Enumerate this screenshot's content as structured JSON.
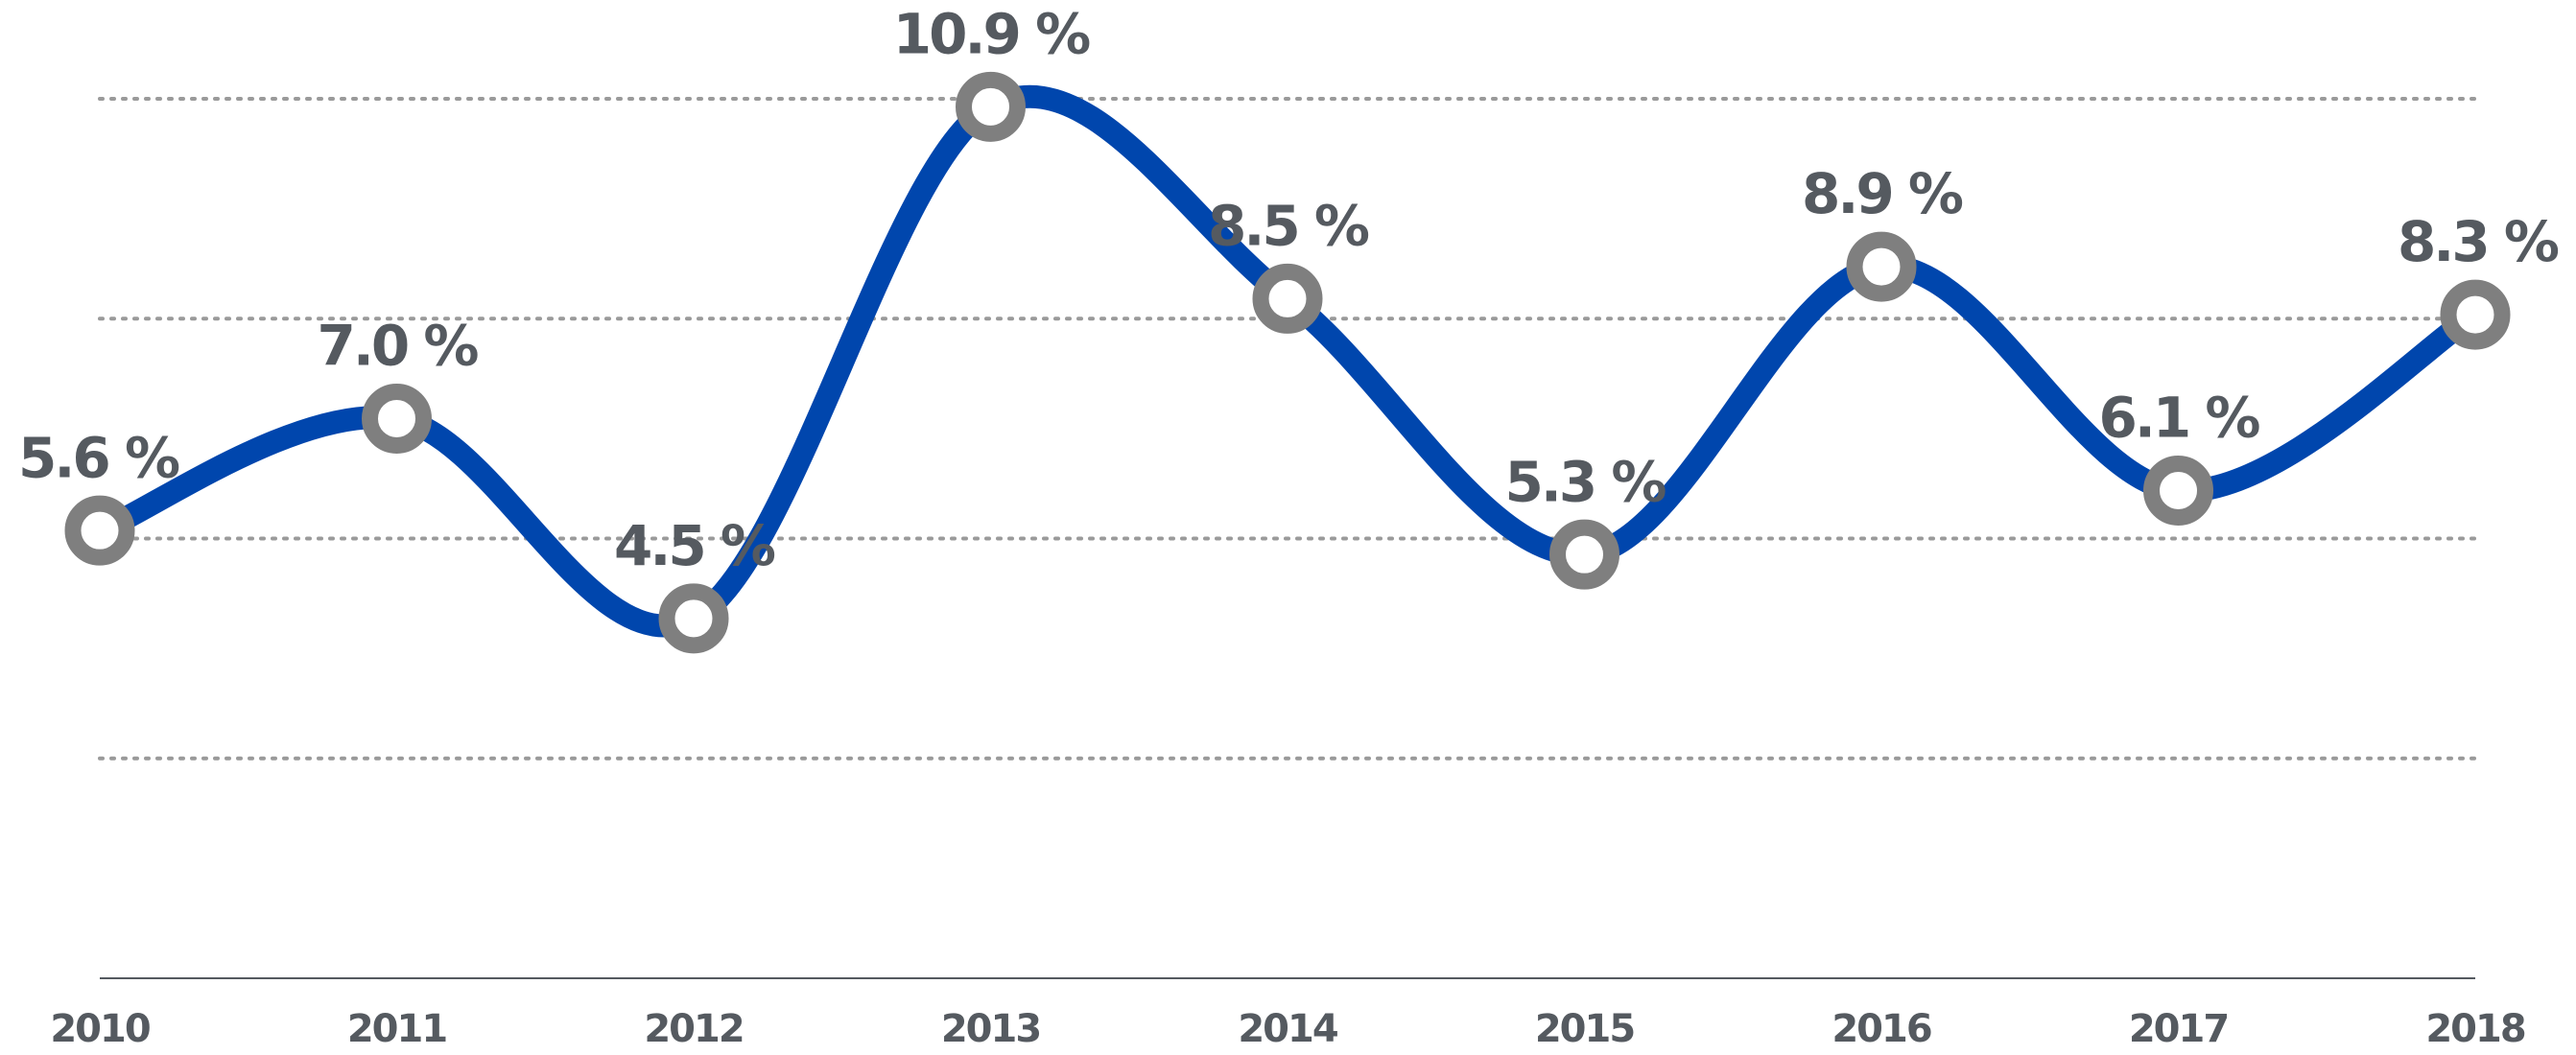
{
  "chart_data": {
    "type": "line",
    "categories": [
      "2010",
      "2011",
      "2012",
      "2013",
      "2014",
      "2015",
      "2016",
      "2017",
      "2018"
    ],
    "series": [
      {
        "color": "#0046ad",
        "values": [
          5.6,
          7.0,
          4.5,
          10.9,
          8.5,
          5.3,
          8.9,
          6.1,
          8.3
        ],
        "value_labels": [
          "5.6 %",
          "7.0 %",
          "4.5 %",
          "10.9 %",
          "8.5 %",
          "5.3 %",
          "8.9 %",
          "6.1 %",
          "8.3 %"
        ]
      }
    ],
    "marker_color": "#7f7f7f",
    "ylim": [
      0,
      11
    ],
    "yticks": [
      0,
      2.75,
      5.5,
      8.25,
      11
    ],
    "grid": true
  }
}
